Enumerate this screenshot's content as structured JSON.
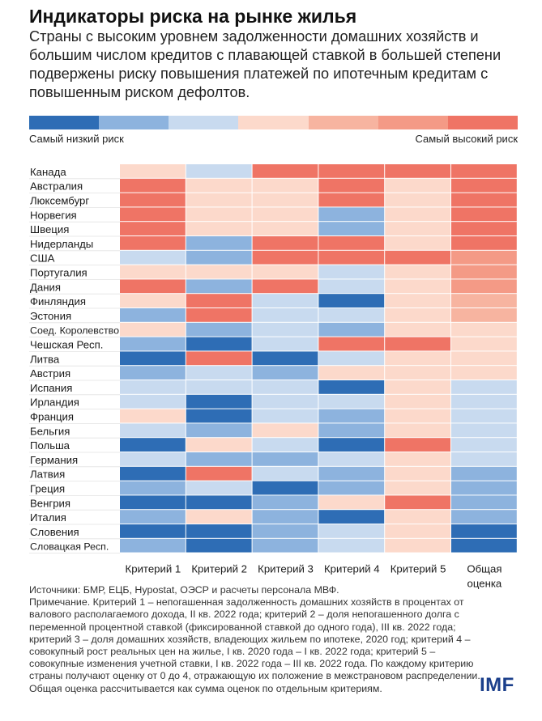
{
  "title": "Индикаторы риска на рынке жилья",
  "subtitle": "Страны с высоким уровнем задолженности домашних хозяйств и большим числом кредитов с плавающей ставкой в большей степени подвержены риску повышения платежей по ипотечным кредитам с повышенным риском дефолтов.",
  "legend": {
    "low_label": "Самый низкий риск",
    "high_label": "Самый высокий риск",
    "colors": [
      "#2e6db5",
      "#8db3de",
      "#c8daef",
      "#fcd9cb",
      "#f7b4a0",
      "#f49a86",
      "#ef7465"
    ]
  },
  "chart_data": {
    "type": "heatmap",
    "rows": [
      "Канада",
      "Австралия",
      "Люксембург",
      "Норвегия",
      "Швеция",
      "Нидерланды",
      "США",
      "Португалия",
      "Дания",
      "Финляндия",
      "Эстония",
      "Соед. Королевство",
      "Чешская Респ.",
      "Литва",
      "Австрия",
      "Испания",
      "Ирландия",
      "Франция",
      "Бельгия",
      "Польша",
      "Германия",
      "Латвия",
      "Греция",
      "Венгрия",
      "Италия",
      "Словения",
      "Словацкая Респ."
    ],
    "columns": [
      "Критерий 1",
      "Критерий 2",
      "Критерий 3",
      "Критерий 4",
      "Критерий 5",
      "Общая оценка"
    ],
    "criteria_value_colors": [
      "#2e6db5",
      "#8db3de",
      "#c8daef",
      "#fcd9cb",
      "#ef7465"
    ],
    "overall_colors": [
      "#2e6db5",
      "#8db3de",
      "#c8daef",
      "#fcd9cb",
      "#f7b4a0",
      "#f49a86",
      "#ef7465"
    ],
    "values": [
      [
        3,
        2,
        4,
        4,
        4,
        6
      ],
      [
        4,
        3,
        3,
        4,
        3,
        6
      ],
      [
        4,
        3,
        3,
        4,
        3,
        6
      ],
      [
        4,
        3,
        3,
        1,
        3,
        6
      ],
      [
        4,
        3,
        3,
        1,
        3,
        6
      ],
      [
        4,
        1,
        4,
        4,
        3,
        6
      ],
      [
        2,
        1,
        4,
        4,
        4,
        5
      ],
      [
        3,
        3,
        3,
        2,
        3,
        5
      ],
      [
        4,
        1,
        4,
        2,
        3,
        5
      ],
      [
        3,
        4,
        2,
        0,
        3,
        4
      ],
      [
        1,
        4,
        2,
        2,
        3,
        4
      ],
      [
        3,
        1,
        2,
        1,
        3,
        3
      ],
      [
        1,
        0,
        2,
        4,
        4,
        3
      ],
      [
        0,
        4,
        0,
        2,
        3,
        3
      ],
      [
        1,
        2,
        1,
        3,
        3,
        3
      ],
      [
        2,
        2,
        2,
        0,
        3,
        2
      ],
      [
        2,
        0,
        2,
        2,
        3,
        2
      ],
      [
        3,
        0,
        2,
        1,
        3,
        2
      ],
      [
        2,
        1,
        3,
        1,
        3,
        2
      ],
      [
        0,
        3,
        2,
        0,
        4,
        2
      ],
      [
        2,
        1,
        1,
        2,
        3,
        2
      ],
      [
        0,
        4,
        2,
        1,
        3,
        1
      ],
      [
        1,
        2,
        0,
        1,
        3,
        1
      ],
      [
        0,
        0,
        1,
        3,
        4,
        1
      ],
      [
        1,
        3,
        1,
        0,
        3,
        1
      ],
      [
        0,
        0,
        1,
        2,
        3,
        0
      ],
      [
        1,
        0,
        1,
        2,
        3,
        0
      ]
    ]
  },
  "notes": {
    "sources": "Источники: БМР, ЕЦБ, Hypostat, ОЭСР и расчеты персонала МВФ.",
    "note": "Примечание. Критерий 1 – непогашенная задолженность домашних хозяйств в процентах от валового располагаемого дохода, II кв. 2022 года; критерий 2 – доля непогашенного долга с переменной процентной ставкой (фиксированной ставкой до одного года), III кв. 2022 года; критерий 3 – доля домашних хозяйств, владеющих жильем по ипотеке, 2020 год; критерий 4 – совокупный рост реальных цен на жилье, I кв. 2020 года – I кв. 2022 года; критерий 5 – совокупные изменения учетной ставки, I кв. 2022 года – III кв. 2022 года. По каждому критерию страны получают оценку от 0 до 4, отражающую их положение в межстрановом распределении. Общая оценка рассчитывается как сумма оценок по отдельным критериям."
  },
  "logo": "IMF"
}
